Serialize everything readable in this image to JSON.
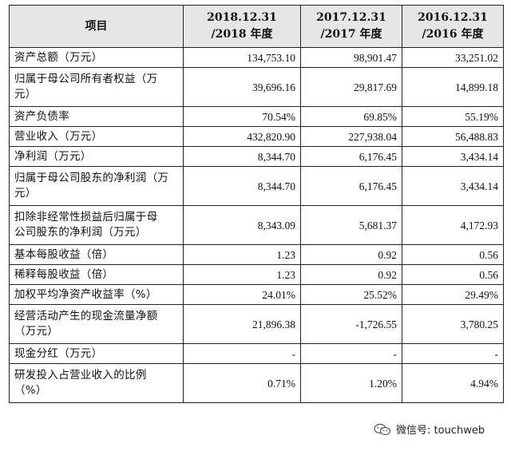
{
  "header": {
    "item": "项目",
    "col1": [
      "2018.12.31",
      "/2018 年度"
    ],
    "col2": [
      "2017.12.31",
      "/2017 年度"
    ],
    "col3": [
      "2016.12.31",
      "/2016 年度"
    ]
  },
  "rows": [
    {
      "label": [
        "资产总额（万元）"
      ],
      "v": [
        "134,753.10",
        "98,901.47",
        "33,251.02"
      ]
    },
    {
      "label": [
        "归属于母公司所有者权益（万",
        "元）"
      ],
      "v": [
        "39,696.16",
        "29,817.69",
        "14,899.18"
      ]
    },
    {
      "label": [
        "资产负债率"
      ],
      "v": [
        "70.54%",
        "69.85%",
        "55.19%"
      ]
    },
    {
      "label": [
        "营业收入（万元）"
      ],
      "v": [
        "432,820.90",
        "227,938.04",
        "56,488.83"
      ]
    },
    {
      "label": [
        "净利润（万元）"
      ],
      "v": [
        "8,344.70",
        "6,176.45",
        "3,434.14"
      ]
    },
    {
      "label": [
        "归属于母公司股东的净利润（万",
        "元）"
      ],
      "v": [
        "8,344.70",
        "6,176.45",
        "3,434.14"
      ]
    },
    {
      "label": [
        "扣除非经常性损益后归属于母",
        "公司股东的净利润（万元）"
      ],
      "v": [
        "8,343.09",
        "5,681.37",
        "4,172.93"
      ]
    },
    {
      "label": [
        "基本每股收益（倍）"
      ],
      "v": [
        "1.23",
        "0.92",
        "0.56"
      ]
    },
    {
      "label": [
        "稀释每股收益（倍）"
      ],
      "v": [
        "1.23",
        "0.92",
        "0.56"
      ]
    },
    {
      "label": [
        "加权平均净资产收益率（%）"
      ],
      "v": [
        "24.01%",
        "25.52%",
        "29.49%"
      ]
    },
    {
      "label": [
        "经营活动产生的现金流量净额",
        "（万元）"
      ],
      "v": [
        "21,896.38",
        "-1,726.55",
        "3,780.25"
      ]
    },
    {
      "label": [
        "现金分红（万元）"
      ],
      "v": [
        "-",
        "-",
        "-"
      ]
    },
    {
      "label": [
        "研发投入占营业收入的比例",
        "（%）"
      ],
      "v": [
        "0.71%",
        "1.20%",
        "4.94%"
      ]
    }
  ],
  "watermark": {
    "text": "微信号: touchweb",
    "icon": "wechat-icon"
  }
}
